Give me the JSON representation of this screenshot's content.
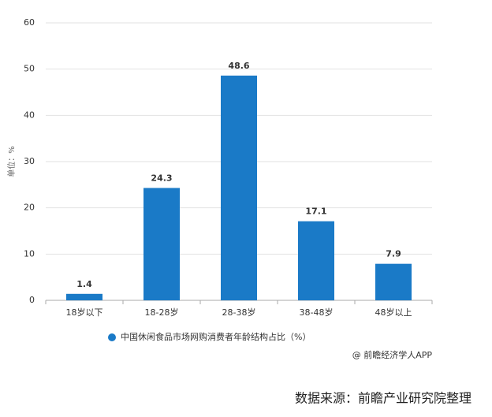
{
  "chart_data": {
    "type": "bar",
    "y_axis_label": "单位：%",
    "categories": [
      "18岁以下",
      "18-28岁",
      "28-38岁",
      "38-48岁",
      "48岁以上"
    ],
    "series": [
      {
        "name": "中国休闲食品市场网购消费者年龄结构占比（%）",
        "color": "#1a7ac7",
        "values": [
          1.4,
          24.3,
          48.6,
          17.1,
          7.9
        ]
      }
    ],
    "ylim": [
      0,
      60
    ],
    "yticks": [
      0,
      10,
      20,
      30,
      40,
      50,
      60
    ],
    "grid": true,
    "legend": "bottom"
  },
  "credit": "@ 前瞻经济学人APP",
  "source": "数据来源：前瞻产业研究院整理"
}
